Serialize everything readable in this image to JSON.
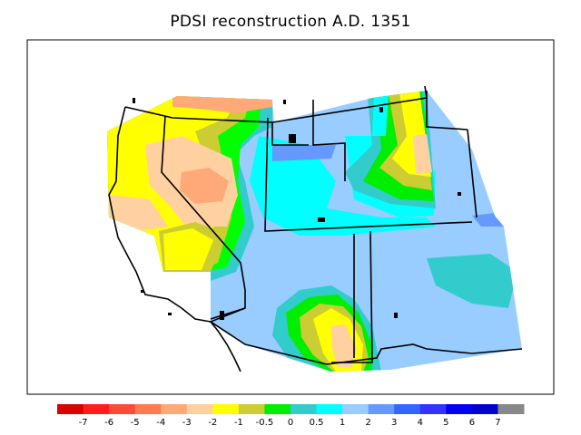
{
  "title": "PDSI reconstruction A.D. 1351",
  "legend": {
    "colors": [
      "#d90000",
      "#ff1e1e",
      "#ff4a3a",
      "#ff7a50",
      "#ffa878",
      "#ffd0a0",
      "#ffff00",
      "#cccc33",
      "#00ee00",
      "#33cccc",
      "#00ffff",
      "#99ccff",
      "#6699ff",
      "#3366ff",
      "#3333ff",
      "#0000ee",
      "#0000cc",
      "#888888"
    ],
    "ticks": [
      "-7",
      "-6",
      "-5",
      "-4",
      "-3",
      "-2",
      "-1",
      "-0.5",
      "0",
      "0.5",
      "1",
      "2",
      "3",
      "4",
      "5",
      "6",
      "7"
    ]
  },
  "colors": {
    "frame": "#000000",
    "background": "#ffffff",
    "state_lines": "#000000"
  }
}
